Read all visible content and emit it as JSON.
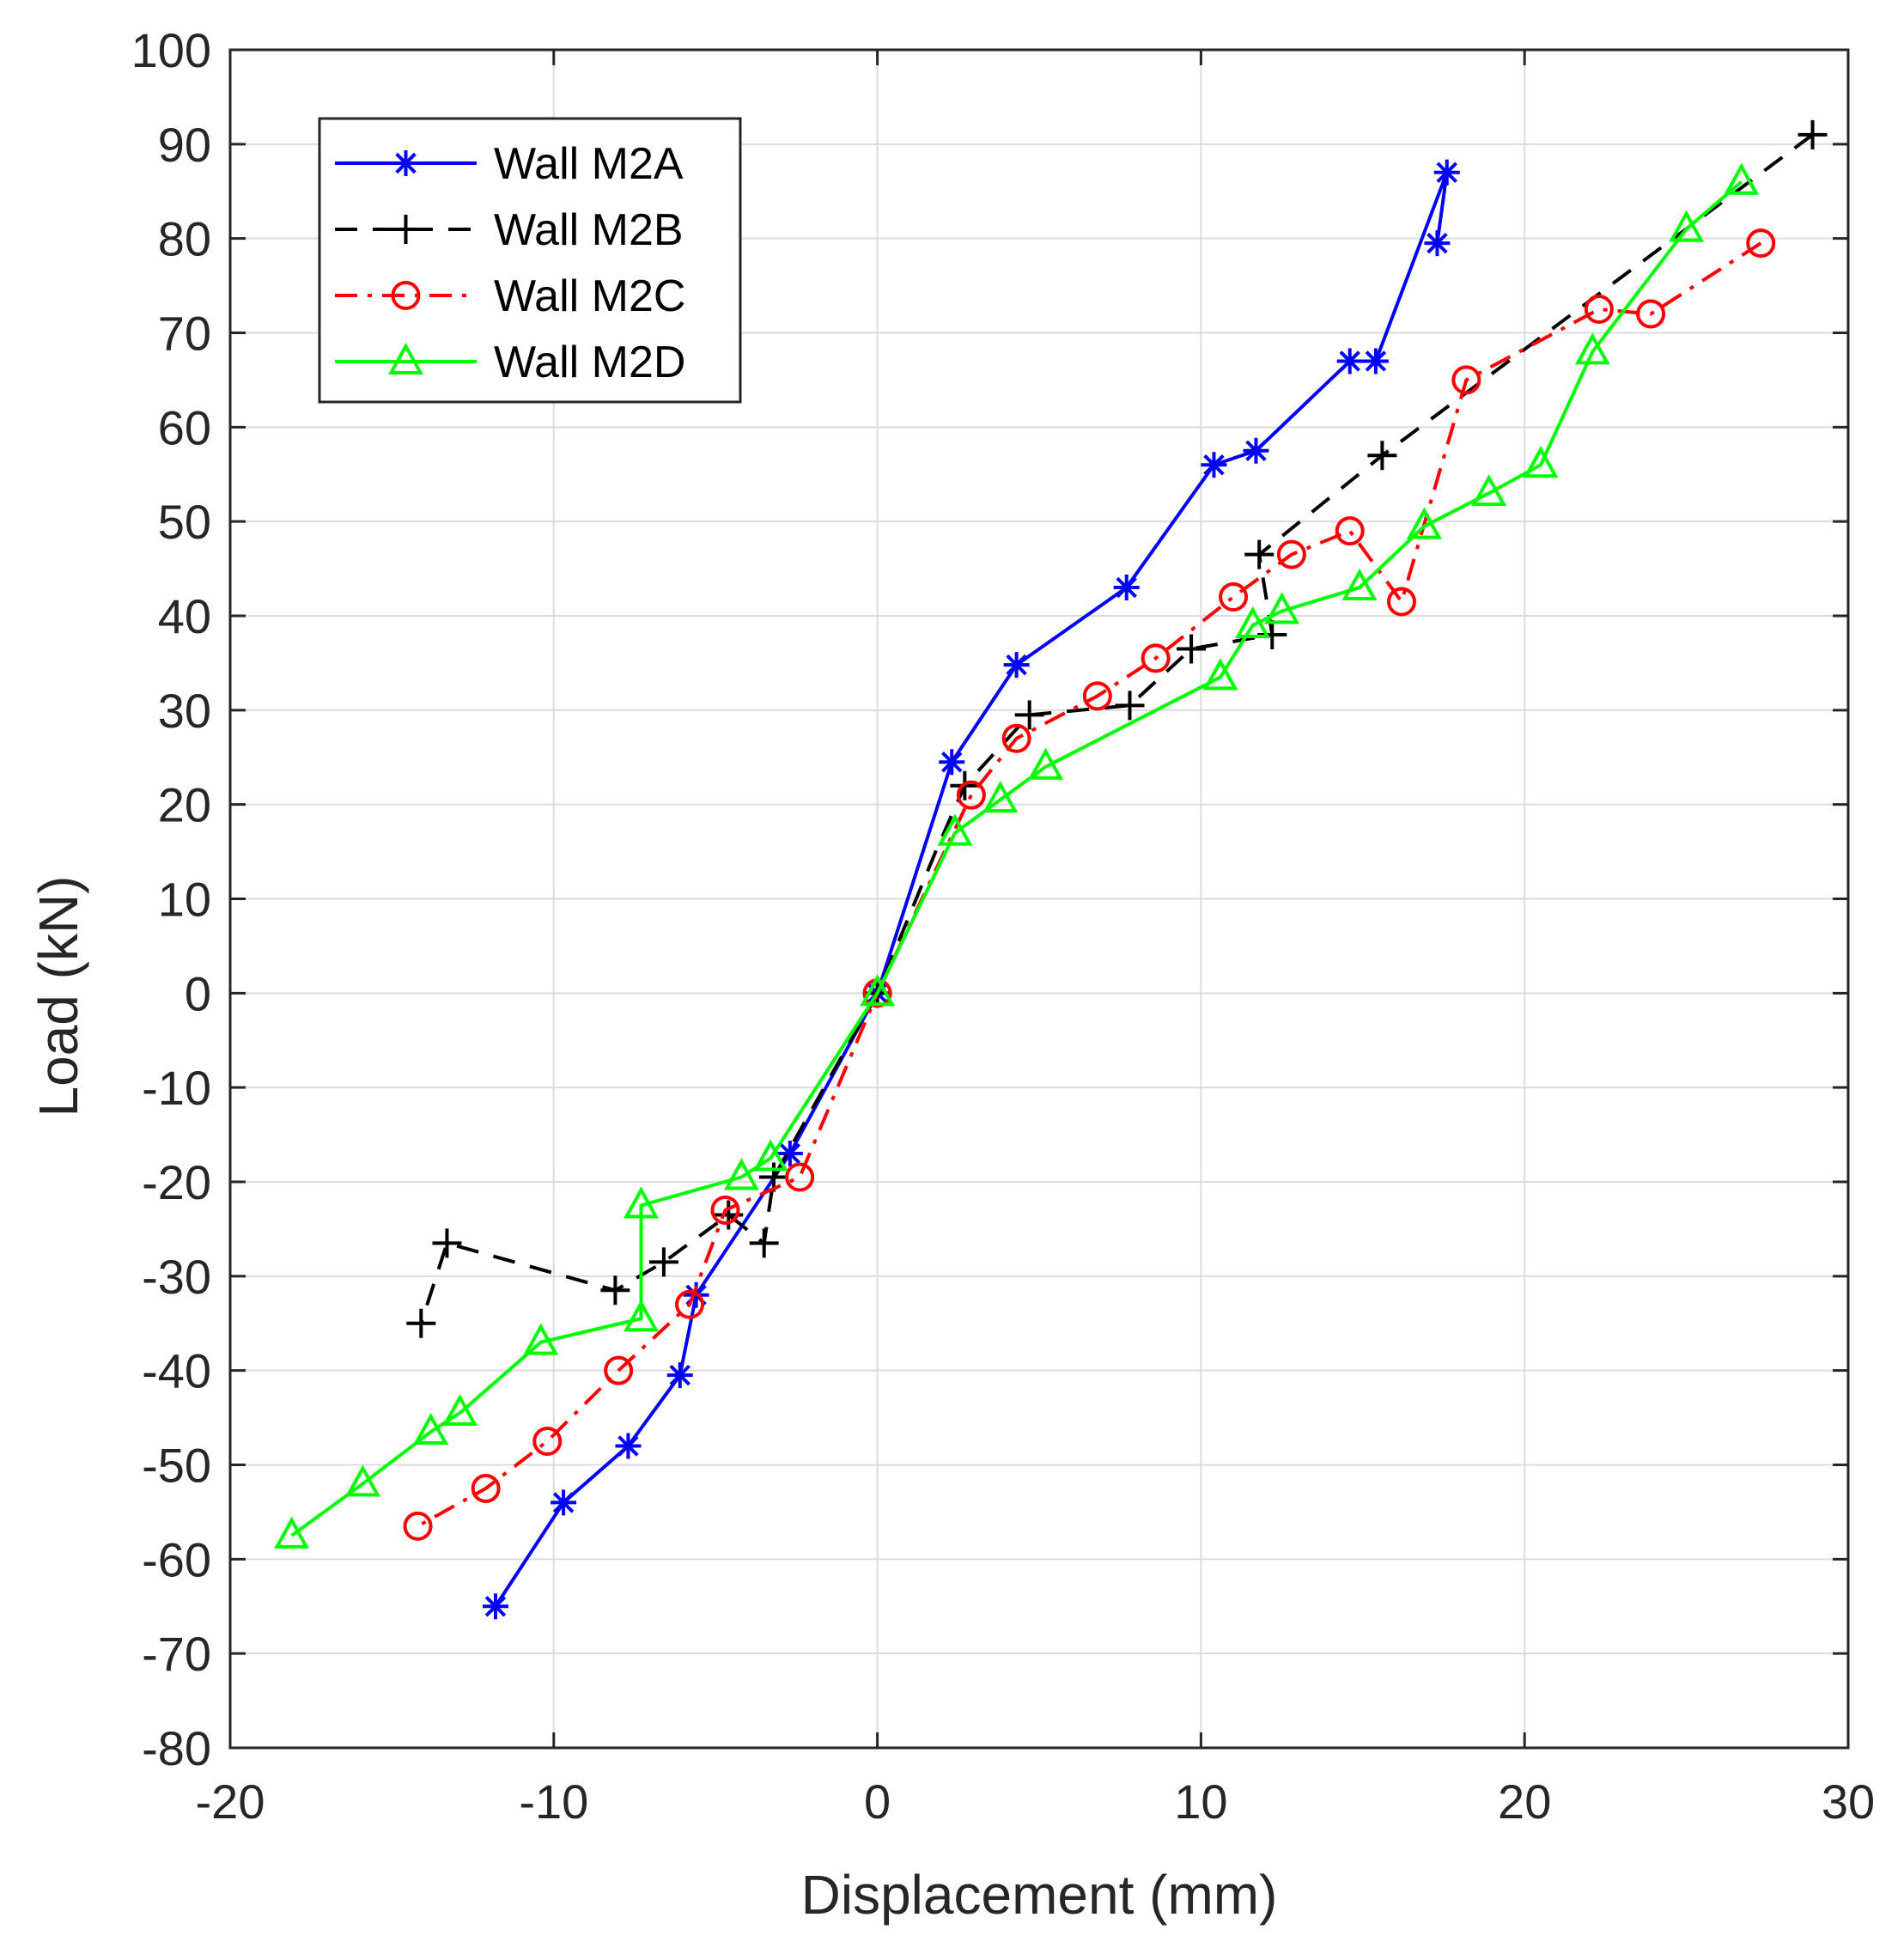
{
  "chart_data": {
    "type": "line",
    "xlabel": "Displacement (mm)",
    "ylabel": "Load (kN)",
    "xlim": [
      -20,
      30
    ],
    "ylim": [
      -80,
      100
    ],
    "xticks": [
      -20,
      -10,
      0,
      10,
      20,
      30
    ],
    "yticks": [
      -80,
      -70,
      -60,
      -50,
      -40,
      -30,
      -20,
      -10,
      0,
      10,
      20,
      30,
      40,
      50,
      60,
      70,
      80,
      90,
      100
    ],
    "grid": true,
    "legend_position": "top-left",
    "series": [
      {
        "name": "Wall M2A",
        "color": "#0000ff",
        "line_style": "solid",
        "marker": "asterisk",
        "x": [
          17.3,
          17.6,
          15.4,
          14.6,
          11.7,
          10.4,
          7.7,
          4.3,
          2.3,
          0,
          -2.7,
          -5.6,
          -6.1,
          -7.7,
          -9.7,
          -11.8
        ],
        "y": [
          79.5,
          87.0,
          67.0,
          67.0,
          57.5,
          56.0,
          43.0,
          34.8,
          24.5,
          0,
          -17.0,
          -32.0,
          -40.5,
          -48.0,
          -54.0,
          -65.0
        ]
      },
      {
        "name": "Wall M2B",
        "color": "#000000",
        "line_style": "dashed",
        "marker": "plus",
        "x": [
          28.9,
          15.6,
          11.8,
          12.2,
          9.7,
          7.8,
          4.7,
          2.7,
          1.8,
          0,
          -3.2,
          -3.5,
          -4.6,
          -6.6,
          -8.1,
          -13.3,
          -14.1
        ],
        "y": [
          91.0,
          57.0,
          46.5,
          38.0,
          36.5,
          30.5,
          29.5,
          22.0,
          15.0,
          0,
          -19.5,
          -26.5,
          -23.5,
          -28.5,
          -31.5,
          -26.5,
          -35.0
        ],
        "hidden_points": [
          8
        ]
      },
      {
        "name": "Wall M2C",
        "color": "#ff0000",
        "line_style": "dash-dot",
        "marker": "circle",
        "x": [
          27.3,
          23.9,
          22.3,
          18.2,
          16.2,
          14.6,
          12.8,
          11.0,
          8.6,
          6.8,
          4.3,
          2.9,
          0,
          -2.4,
          -4.7,
          -5.8,
          -8.0,
          -10.2,
          -12.1,
          -14.2
        ],
        "y": [
          79.5,
          72.0,
          72.5,
          65.0,
          41.5,
          49.0,
          46.5,
          42.0,
          35.5,
          31.5,
          27.0,
          21.0,
          0,
          -19.5,
          -23.0,
          -33.0,
          -40.0,
          -47.5,
          -52.5,
          -56.5
        ]
      },
      {
        "name": "Wall M2D",
        "color": "#00ff00",
        "line_style": "solid",
        "marker": "triangle",
        "x": [
          26.7,
          25.0,
          22.1,
          20.5,
          18.9,
          16.9,
          14.9,
          12.5,
          11.6,
          10.6,
          5.2,
          3.8,
          2.4,
          0,
          -3.3,
          -4.2,
          -7.3,
          -7.3,
          -10.4,
          -12.9,
          -13.8,
          -15.9,
          -18.1
        ],
        "y": [
          86.0,
          81.0,
          68.0,
          56.0,
          53.0,
          49.5,
          43.0,
          40.5,
          39.0,
          33.5,
          24.0,
          20.5,
          17.0,
          0,
          -17.5,
          -19.5,
          -22.5,
          -34.5,
          -37.0,
          -44.5,
          -46.5,
          -52.0,
          -57.5
        ]
      }
    ]
  }
}
